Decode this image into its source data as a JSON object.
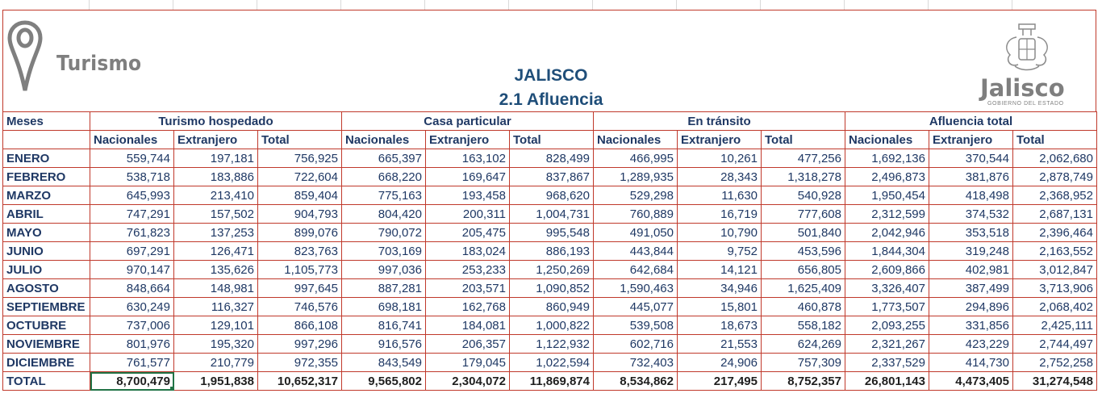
{
  "header": {
    "logo_left_text": "Turismo",
    "title": "JALISCO",
    "subtitle": "2.1 Afluencia",
    "logo_right_text": "Jalisco",
    "logo_right_subtext": "GOBIERNO DEL ESTADO"
  },
  "table": {
    "month_header": "Meses",
    "groups": [
      "Turismo hospedado",
      "Casa particular",
      "En tránsito",
      "Afluencia total"
    ],
    "subheaders": [
      "Nacionales",
      "Extranjero",
      "Total"
    ],
    "rows": [
      {
        "month": "ENERO",
        "values": [
          "559,744",
          "197,181",
          "756,925",
          "665,397",
          "163,102",
          "828,499",
          "466,995",
          "10,261",
          "477,256",
          "1,692,136",
          "370,544",
          "2,062,680"
        ]
      },
      {
        "month": "FEBRERO",
        "values": [
          "538,718",
          "183,886",
          "722,604",
          "668,220",
          "169,647",
          "837,867",
          "1,289,935",
          "28,343",
          "1,318,278",
          "2,496,873",
          "381,876",
          "2,878,749"
        ]
      },
      {
        "month": "MARZO",
        "values": [
          "645,993",
          "213,410",
          "859,404",
          "775,163",
          "193,458",
          "968,620",
          "529,298",
          "11,630",
          "540,928",
          "1,950,454",
          "418,498",
          "2,368,952"
        ]
      },
      {
        "month": "ABRIL",
        "values": [
          "747,291",
          "157,502",
          "904,793",
          "804,420",
          "200,311",
          "1,004,731",
          "760,889",
          "16,719",
          "777,608",
          "2,312,599",
          "374,532",
          "2,687,131"
        ]
      },
      {
        "month": "MAYO",
        "values": [
          "761,823",
          "137,253",
          "899,076",
          "790,072",
          "205,475",
          "995,548",
          "491,050",
          "10,790",
          "501,840",
          "2,042,946",
          "353,518",
          "2,396,464"
        ]
      },
      {
        "month": "JUNIO",
        "values": [
          "697,291",
          "126,471",
          "823,763",
          "703,169",
          "183,024",
          "886,193",
          "443,844",
          "9,752",
          "453,596",
          "1,844,304",
          "319,248",
          "2,163,552"
        ]
      },
      {
        "month": "JULIO",
        "values": [
          "970,147",
          "135,626",
          "1,105,773",
          "997,036",
          "253,233",
          "1,250,269",
          "642,684",
          "14,121",
          "656,805",
          "2,609,866",
          "402,981",
          "3,012,847"
        ]
      },
      {
        "month": "AGOSTO",
        "values": [
          "848,664",
          "148,981",
          "997,645",
          "887,281",
          "203,571",
          "1,090,852",
          "1,590,463",
          "34,946",
          "1,625,409",
          "3,326,407",
          "387,499",
          "3,713,906"
        ]
      },
      {
        "month": "SEPTIEMBRE",
        "values": [
          "630,249",
          "116,327",
          "746,576",
          "698,181",
          "162,768",
          "860,949",
          "445,077",
          "15,801",
          "460,878",
          "1,773,507",
          "294,896",
          "2,068,402"
        ]
      },
      {
        "month": "OCTUBRE",
        "values": [
          "737,006",
          "129,101",
          "866,108",
          "816,741",
          "184,081",
          "1,000,822",
          "539,508",
          "18,673",
          "558,182",
          "2,093,255",
          "331,856",
          "2,425,111"
        ]
      },
      {
        "month": "NOVIEMBRE",
        "values": [
          "801,976",
          "195,320",
          "997,296",
          "916,576",
          "206,357",
          "1,122,932",
          "602,716",
          "21,553",
          "624,269",
          "2,321,267",
          "423,229",
          "2,744,497"
        ]
      },
      {
        "month": "DICIEMBRE",
        "values": [
          "761,577",
          "210,779",
          "972,355",
          "843,549",
          "179,045",
          "1,022,594",
          "732,403",
          "24,906",
          "757,309",
          "2,337,529",
          "414,730",
          "2,752,258"
        ]
      }
    ],
    "total": {
      "month": "TOTAL",
      "values": [
        "8,700,479",
        "1,951,838",
        "10,652,317",
        "9,565,802",
        "2,304,072",
        "11,869,874",
        "8,534,862",
        "217,495",
        "8,752,357",
        "26,801,143",
        "4,473,405",
        "31,274,548"
      ]
    }
  },
  "colors": {
    "grid_border": "#c0392b",
    "header_text": "#1f4e79",
    "selection": "#217346"
  }
}
